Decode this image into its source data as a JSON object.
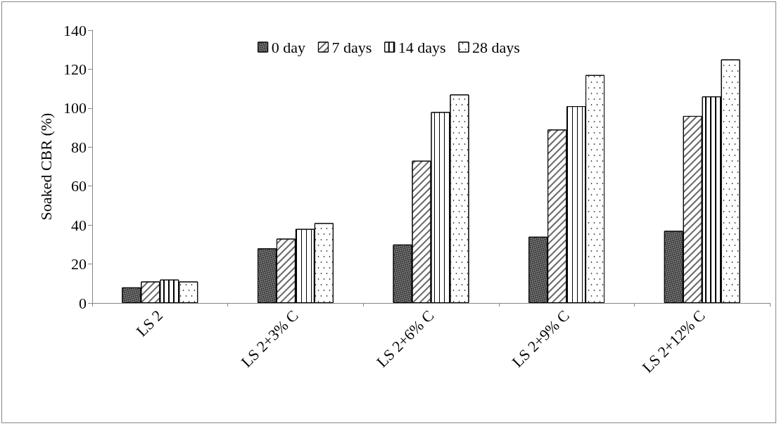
{
  "chart_data": {
    "type": "bar",
    "ylabel": "Soaked CBR (%)",
    "categories": [
      "LS 2",
      "LS 2+3% C",
      "LS 2+6% C",
      "LS 2+9% C",
      "LS 2+12% C"
    ],
    "series": [
      {
        "name": "0 day",
        "color": "#7f7f7f",
        "values": [
          8,
          28,
          30,
          34,
          37
        ]
      },
      {
        "name": "7 days",
        "color": "#ffffff",
        "values": [
          11,
          33,
          73,
          89,
          96
        ]
      },
      {
        "name": "14 days",
        "color": "#ffffff",
        "values": [
          12,
          38,
          98,
          101,
          106
        ]
      },
      {
        "name": "28 days",
        "color": "#ffffff",
        "values": [
          11,
          41,
          107,
          117,
          125
        ]
      }
    ],
    "ylim": [
      0,
      140
    ],
    "yticks": [
      0,
      20,
      40,
      60,
      80,
      100,
      120,
      140
    ],
    "grid": false,
    "legend": "top"
  }
}
